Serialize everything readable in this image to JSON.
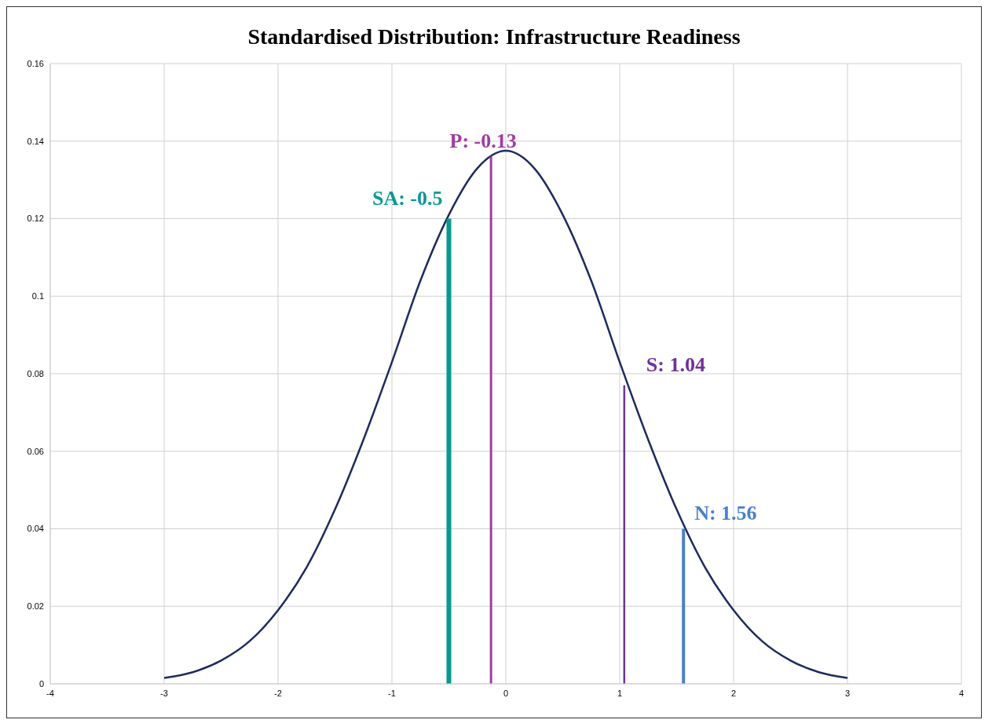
{
  "chart_data": {
    "type": "line",
    "title": "Standardised Distribution: Infrastructure Readiness",
    "xlim": [
      -4,
      4
    ],
    "xticks": [
      -4,
      -3,
      -2,
      -1,
      0,
      1,
      2,
      3,
      4
    ],
    "ylim": [
      0,
      0.16
    ],
    "yticks": [
      0,
      0.02,
      0.04,
      0.06,
      0.08,
      0.1,
      0.12,
      0.14,
      0.16
    ],
    "grid": true,
    "marker": "none",
    "line_style": "solid",
    "series": [
      {
        "color": "#1f2a60",
        "x": [
          -3,
          -2.75,
          -2.5,
          -2.25,
          -2,
          -1.75,
          -1.5,
          -1.25,
          -1,
          -0.75,
          -0.5,
          -0.25,
          0,
          0.25,
          0.5,
          0.75,
          1,
          1.25,
          1.5,
          1.75,
          2,
          2.25,
          2.5,
          2.75,
          3
        ],
        "values": [
          0.0015,
          0.003,
          0.006,
          0.011,
          0.019,
          0.03,
          0.045,
          0.063,
          0.083,
          0.104,
          0.121,
          0.133,
          0.1375,
          0.133,
          0.121,
          0.104,
          0.083,
          0.063,
          0.045,
          0.03,
          0.019,
          0.011,
          0.006,
          0.003,
          0.0015
        ]
      },
      {
        "name": "SA: -0.5",
        "color": "#009a96",
        "x": [
          -0.5,
          -0.5
        ],
        "values": [
          0,
          0.12
        ]
      },
      {
        "name": "P: -0.13",
        "color": "#a03ca0",
        "x": [
          -0.13,
          -0.13
        ],
        "values": [
          0,
          0.136
        ]
      },
      {
        "name": "S: 1.04",
        "color": "#7030a0",
        "x": [
          1.04,
          1.04
        ],
        "values": [
          0,
          0.077
        ]
      },
      {
        "name": "N: 1.56",
        "color": "#4a7fd0",
        "x": [
          1.56,
          1.56
        ],
        "values": [
          0,
          0.04
        ]
      }
    ]
  }
}
